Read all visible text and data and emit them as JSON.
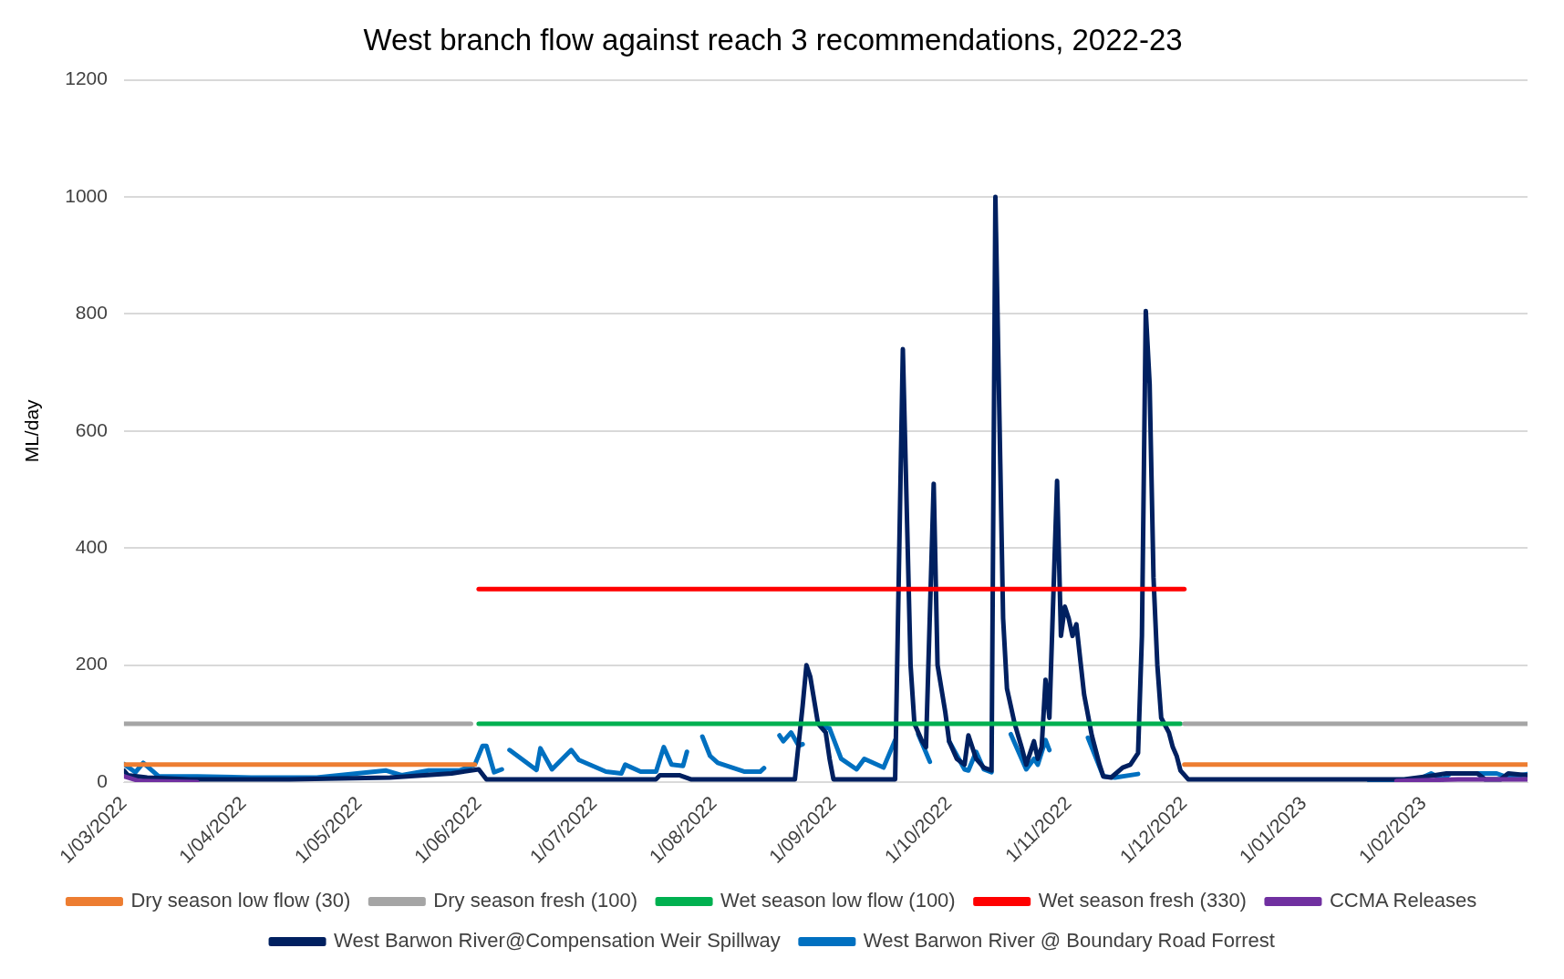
{
  "chart_data": {
    "type": "line",
    "title": "West branch flow against reach 3 recommendations, 2022-23",
    "ylabel": "ML/day",
    "xlim": [
      "2022-03-01",
      "2023-02-28"
    ],
    "xticks": [
      {
        "value": "2022-03-01",
        "label": "1/03/2022"
      },
      {
        "value": "2022-04-01",
        "label": "1/04/2022"
      },
      {
        "value": "2022-05-01",
        "label": "1/05/2022"
      },
      {
        "value": "2022-06-01",
        "label": "1/06/2022"
      },
      {
        "value": "2022-07-01",
        "label": "1/07/2022"
      },
      {
        "value": "2022-08-01",
        "label": "1/08/2022"
      },
      {
        "value": "2022-09-01",
        "label": "1/09/2022"
      },
      {
        "value": "2022-10-01",
        "label": "1/10/2022"
      },
      {
        "value": "2022-11-01",
        "label": "1/11/2022"
      },
      {
        "value": "2022-12-01",
        "label": "1/12/2022"
      },
      {
        "value": "2023-01-01",
        "label": "1/01/2023"
      },
      {
        "value": "2023-02-01",
        "label": "1/02/2023"
      }
    ],
    "ylim": [
      0,
      1200
    ],
    "yticks": [
      0,
      200,
      400,
      600,
      800,
      1000,
      1200
    ],
    "grid": "y",
    "legend": "bottom",
    "marker": "none",
    "line_style": "solid",
    "series": [
      {
        "name": "Dry season low flow (30)",
        "color": "#ed7d31",
        "x": [
          "2022-03-01",
          "2022-05-31",
          "2022-06-15",
          "2022-12-01",
          "2023-02-28"
        ],
        "values": [
          30,
          30,
          null,
          30,
          30
        ]
      },
      {
        "name": "Dry season fresh (100)",
        "color": "#a5a5a5",
        "x": [
          "2022-03-01",
          "2022-05-30",
          "2022-06-15",
          "2022-12-01",
          "2023-02-28"
        ],
        "values": [
          100,
          100,
          null,
          100,
          100
        ]
      },
      {
        "name": "Wet season low flow (100)",
        "color": "#00b050",
        "x": [
          "2022-06-01",
          "2022-11-30"
        ],
        "values": [
          100,
          100
        ]
      },
      {
        "name": "Wet season fresh (330)",
        "color": "#ff0000",
        "x": [
          "2022-06-01",
          "2022-12-01"
        ],
        "values": [
          330,
          330
        ]
      },
      {
        "name": "CCMA Releases",
        "color": "#7030a0",
        "x": [
          "2022-03-01",
          "2022-03-05",
          "2022-03-20",
          "2022-06-01",
          "2023-01-25",
          "2023-02-10",
          "2023-02-28"
        ],
        "values": [
          10,
          2,
          0,
          null,
          2,
          5,
          5
        ]
      },
      {
        "name": "West Barwon River@Compensation Weir Spillway",
        "color": "#002060",
        "x": [
          "2022-03-01",
          "2022-03-02",
          "2022-03-07",
          "2022-03-18",
          "2022-04-13",
          "2022-05-09",
          "2022-05-25",
          "2022-06-01",
          "2022-06-03",
          "2022-07-17",
          "2022-07-18",
          "2022-07-23",
          "2022-07-26",
          "2022-08-22",
          "2022-08-24",
          "2022-08-25",
          "2022-08-26",
          "2022-08-28",
          "2022-08-30",
          "2022-08-31",
          "2022-09-01",
          "2022-09-17",
          "2022-09-19",
          "2022-09-21",
          "2022-09-22",
          "2022-09-24",
          "2022-09-25",
          "2022-09-27",
          "2022-09-28",
          "2022-09-30",
          "2022-10-01",
          "2022-10-03",
          "2022-10-05",
          "2022-10-06",
          "2022-10-08",
          "2022-10-10",
          "2022-10-12",
          "2022-10-13",
          "2022-10-15",
          "2022-10-16",
          "2022-10-18",
          "2022-10-20",
          "2022-10-21",
          "2022-10-23",
          "2022-10-24",
          "2022-10-25",
          "2022-10-26",
          "2022-10-27",
          "2022-10-29",
          "2022-10-30",
          "2022-10-31",
          "2022-11-01",
          "2022-11-02",
          "2022-11-03",
          "2022-11-05",
          "2022-11-07",
          "2022-11-09",
          "2022-11-10",
          "2022-11-12",
          "2022-11-15",
          "2022-11-17",
          "2022-11-19",
          "2022-11-20",
          "2022-11-21",
          "2022-11-22",
          "2022-11-23",
          "2022-11-24",
          "2022-11-25",
          "2022-11-27",
          "2022-11-28",
          "2022-11-29",
          "2022-11-30",
          "2022-12-02",
          "2023-01-27",
          "2023-02-02",
          "2023-02-07",
          "2023-02-15",
          "2023-02-17",
          "2023-02-21",
          "2023-02-23",
          "2023-02-28"
        ],
        "values": [
          20,
          12,
          8,
          5,
          5,
          8,
          15,
          22,
          5,
          5,
          12,
          12,
          5,
          5,
          130,
          200,
          180,
          100,
          85,
          40,
          5,
          5,
          740,
          200,
          100,
          70,
          60,
          510,
          200,
          120,
          70,
          40,
          30,
          80,
          40,
          25,
          20,
          1000,
          280,
          160,
          100,
          55,
          30,
          70,
          40,
          60,
          175,
          110,
          515,
          250,
          300,
          280,
          250,
          270,
          150,
          80,
          30,
          10,
          8,
          25,
          30,
          50,
          250,
          805,
          680,
          350,
          200,
          110,
          85,
          60,
          45,
          20,
          5,
          5,
          10,
          15,
          15,
          5,
          5,
          15,
          12
        ]
      },
      {
        "name": "West Barwon River @ Boundary Road Forrest",
        "color": "#0070c0",
        "x": [
          "2022-03-01",
          "2022-03-04",
          "2022-03-06",
          "2022-03-10",
          "2022-03-20",
          "2022-04-03",
          "2022-04-20",
          "2022-05-08",
          "2022-05-12",
          "2022-05-19",
          "2022-05-27",
          "2022-05-31",
          "2022-06-02",
          "2022-06-03",
          "2022-06-05",
          "2022-06-07",
          "2022-06-08",
          "2022-06-09",
          "2022-06-16",
          "2022-06-17",
          "2022-06-20",
          "2022-06-25",
          "2022-06-27",
          "2022-07-04",
          "2022-07-08",
          "2022-07-09",
          "2022-07-13",
          "2022-07-17",
          "2022-07-19",
          "2022-07-21",
          "2022-07-24",
          "2022-07-25",
          "2022-07-27",
          "2022-07-29",
          "2022-07-31",
          "2022-08-02",
          "2022-08-09",
          "2022-08-13",
          "2022-08-14",
          "2022-08-16",
          "2022-08-18",
          "2022-08-19",
          "2022-08-21",
          "2022-08-23",
          "2022-08-24",
          "2022-08-26",
          "2022-08-29",
          "2022-08-31",
          "2022-09-03",
          "2022-09-07",
          "2022-09-09",
          "2022-09-14",
          "2022-09-17",
          "2022-09-20",
          "2022-09-23",
          "2022-09-26",
          "2022-09-28",
          "2022-10-01",
          "2022-10-05",
          "2022-10-06",
          "2022-10-08",
          "2022-10-10",
          "2022-10-12",
          "2022-10-14",
          "2022-10-17",
          "2022-10-21",
          "2022-10-23",
          "2022-10-24",
          "2022-10-26",
          "2022-10-27",
          "2022-11-01",
          "2022-11-06",
          "2022-11-10",
          "2022-11-13",
          "2022-11-19",
          "2022-12-20",
          "2023-01-18",
          "2023-01-30",
          "2023-02-03",
          "2023-02-06",
          "2023-02-08",
          "2023-02-16",
          "2023-02-20",
          "2023-02-23",
          "2023-02-28"
        ],
        "values": [
          31,
          17,
          33,
          10,
          10,
          8,
          8,
          20,
          12,
          20,
          20,
          30,
          62,
          62,
          17,
          22,
          null,
          55,
          21,
          58,
          22,
          55,
          38,
          18,
          15,
          30,
          18,
          18,
          60,
          30,
          28,
          52,
          null,
          78,
          45,
          33,
          18,
          18,
          24,
          null,
          80,
          70,
          85,
          62,
          65,
          null,
          95,
          92,
          40,
          22,
          40,
          25,
          72,
          null,
          82,
          35,
          null,
          70,
          22,
          20,
          52,
          22,
          17,
          null,
          82,
          22,
          40,
          30,
          72,
          55,
          null,
          76,
          10,
          8,
          14,
          null,
          2,
          3,
          15,
          5,
          15,
          15,
          15,
          8,
          14
        ]
      }
    ]
  }
}
